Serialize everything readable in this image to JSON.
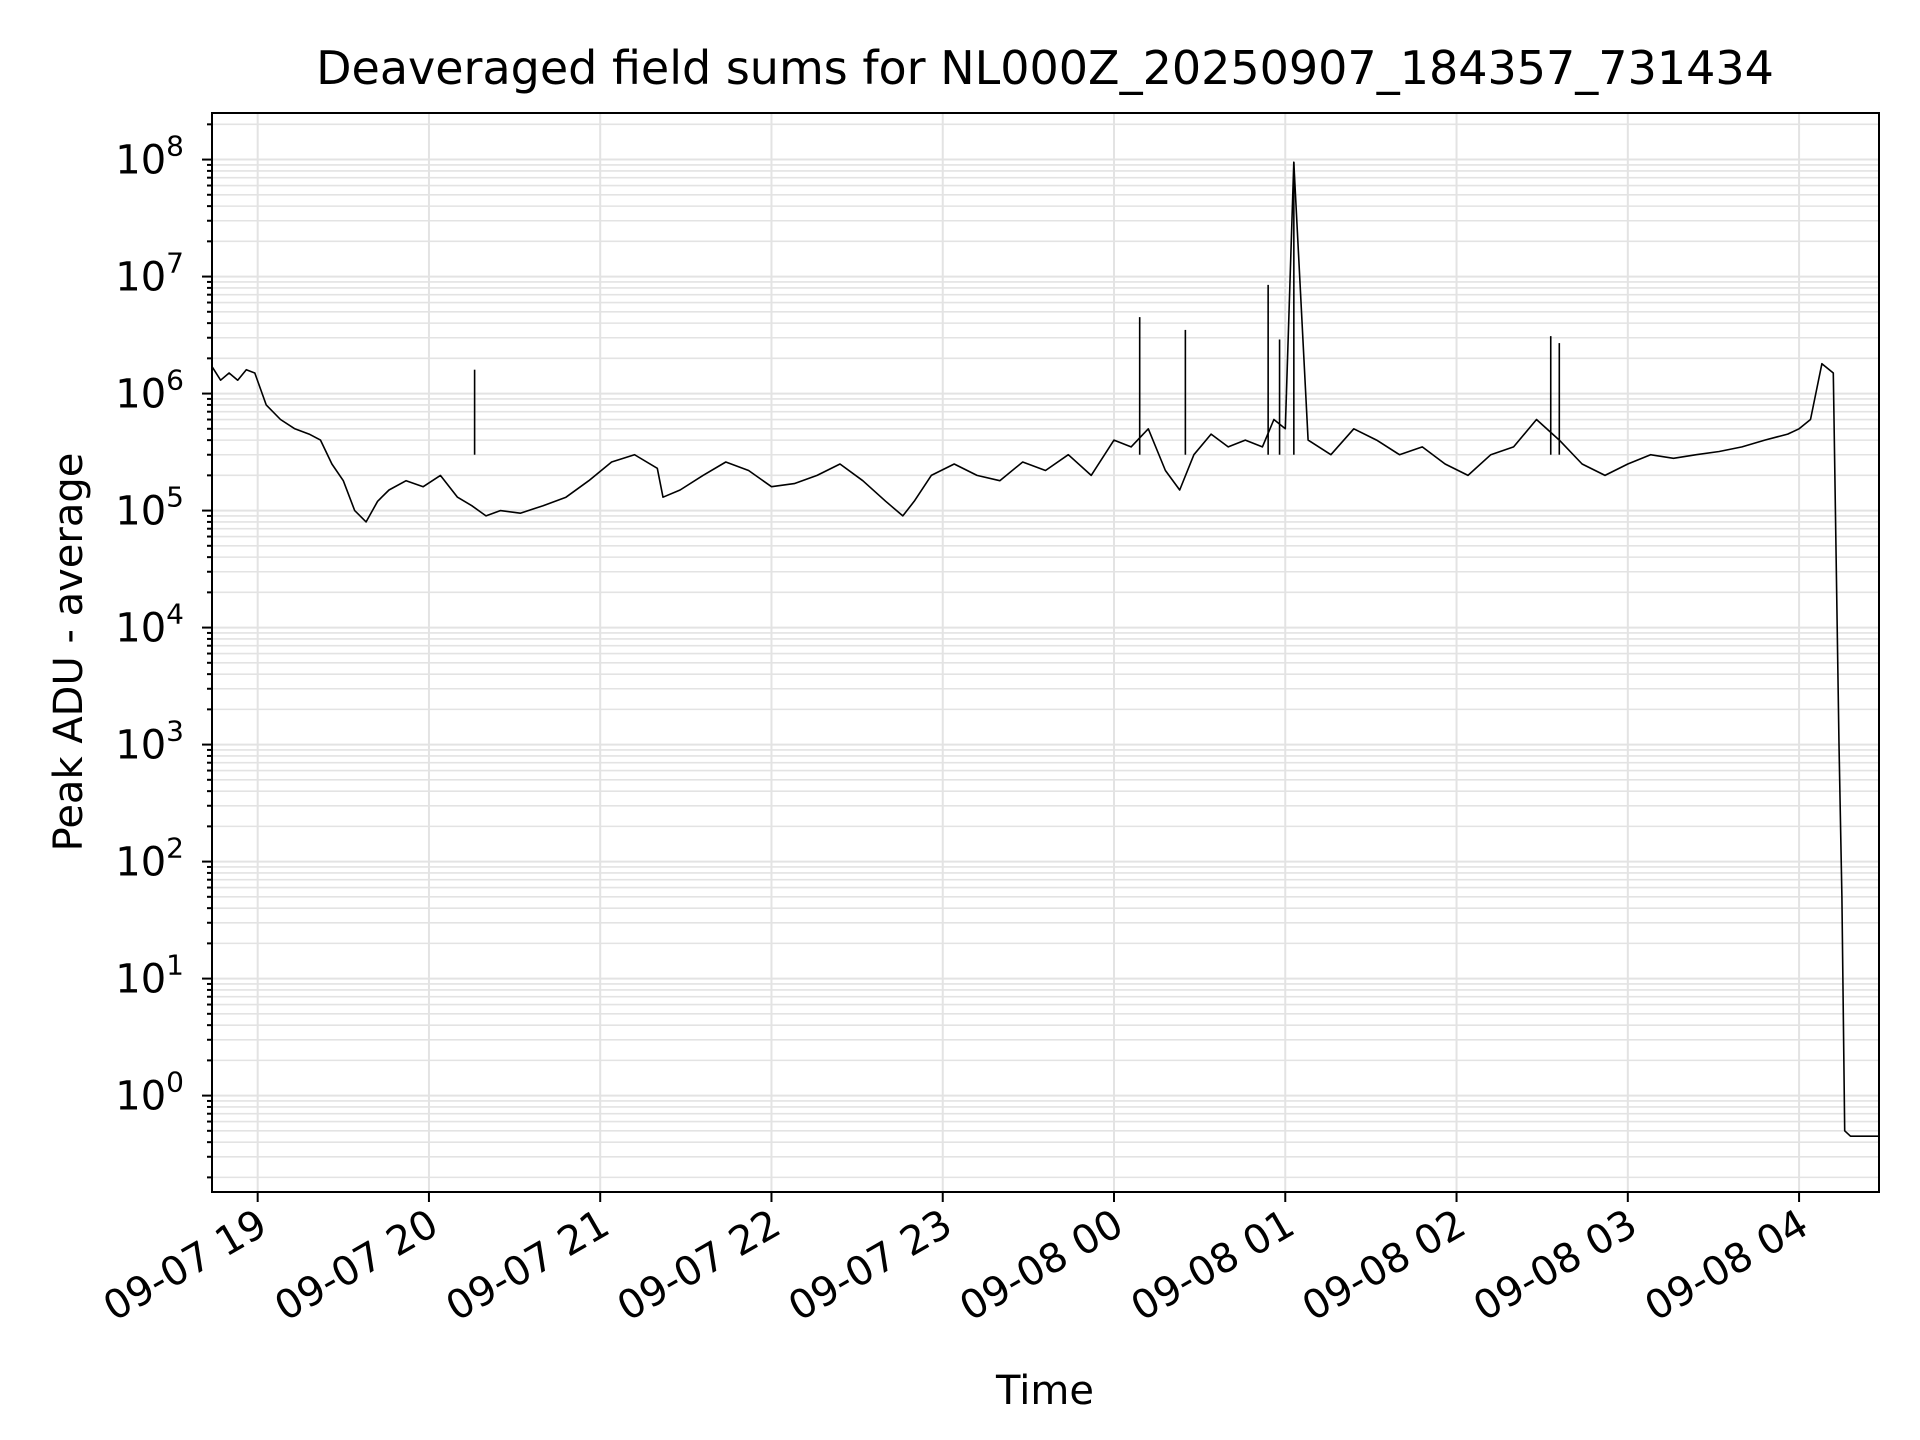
{
  "chart_data": {
    "type": "line",
    "title": "Deaveraged field sums for NL000Z_20250907_184357_731434",
    "xlabel": "Time",
    "ylabel": "Peak ADU - average",
    "yscale": "log",
    "ylim": [
      0.15,
      250000000
    ],
    "xlim": [
      "2025-09-07 18:44",
      "2025-09-08 04:28"
    ],
    "grid": true,
    "line_color": "#000000",
    "grid_color": "#e3e3e3",
    "x_ticks": [
      "09-07 19",
      "09-07 20",
      "09-07 21",
      "09-07 22",
      "09-07 23",
      "09-08 00",
      "09-08 01",
      "09-08 02",
      "09-08 03",
      "09-08 04"
    ],
    "y_ticks": [
      {
        "base": "10",
        "exp": "0"
      },
      {
        "base": "10",
        "exp": "1"
      },
      {
        "base": "10",
        "exp": "2"
      },
      {
        "base": "10",
        "exp": "3"
      },
      {
        "base": "10",
        "exp": "4"
      },
      {
        "base": "10",
        "exp": "5"
      },
      {
        "base": "10",
        "exp": "6"
      },
      {
        "base": "10",
        "exp": "7"
      },
      {
        "base": "10",
        "exp": "8"
      }
    ],
    "series": [
      {
        "x": [
          "2025-09-07 18:44",
          "2025-09-07 18:47",
          "2025-09-07 18:50",
          "2025-09-07 18:53",
          "2025-09-07 18:56",
          "2025-09-07 18:59",
          "2025-09-07 19:03",
          "2025-09-07 19:08",
          "2025-09-07 19:13",
          "2025-09-07 19:18",
          "2025-09-07 19:22",
          "2025-09-07 19:26",
          "2025-09-07 19:30",
          "2025-09-07 19:34",
          "2025-09-07 19:38",
          "2025-09-07 19:42",
          "2025-09-07 19:46",
          "2025-09-07 19:52",
          "2025-09-07 19:58",
          "2025-09-07 20:04",
          "2025-09-07 20:10",
          "2025-09-07 20:15",
          "2025-09-07 20:20",
          "2025-09-07 20:25",
          "2025-09-07 20:32",
          "2025-09-07 20:40",
          "2025-09-07 20:48",
          "2025-09-07 20:56",
          "2025-09-07 21:04",
          "2025-09-07 21:12",
          "2025-09-07 21:20",
          "2025-09-07 21:22",
          "2025-09-07 21:28",
          "2025-09-07 21:36",
          "2025-09-07 21:44",
          "2025-09-07 21:52",
          "2025-09-07 22:00",
          "2025-09-07 22:08",
          "2025-09-07 22:16",
          "2025-09-07 22:24",
          "2025-09-07 22:32",
          "2025-09-07 22:40",
          "2025-09-07 22:46",
          "2025-09-07 22:50",
          "2025-09-07 22:56",
          "2025-09-07 23:04",
          "2025-09-07 23:12",
          "2025-09-07 23:20",
          "2025-09-07 23:28",
          "2025-09-07 23:36",
          "2025-09-07 23:44",
          "2025-09-07 23:52",
          "2025-09-08 00:00",
          "2025-09-08 00:06",
          "2025-09-08 00:12",
          "2025-09-08 00:18",
          "2025-09-08 00:23",
          "2025-09-08 00:28",
          "2025-09-08 00:34",
          "2025-09-08 00:40",
          "2025-09-08 00:46",
          "2025-09-08 00:52",
          "2025-09-08 00:56",
          "2025-09-08 01:00",
          "2025-09-08 01:03",
          "2025-09-08 01:08",
          "2025-09-08 01:16",
          "2025-09-08 01:24",
          "2025-09-08 01:32",
          "2025-09-08 01:40",
          "2025-09-08 01:48",
          "2025-09-08 01:56",
          "2025-09-08 02:04",
          "2025-09-08 02:12",
          "2025-09-08 02:20",
          "2025-09-08 02:28",
          "2025-09-08 02:36",
          "2025-09-08 02:44",
          "2025-09-08 02:52",
          "2025-09-08 03:00",
          "2025-09-08 03:08",
          "2025-09-08 03:16",
          "2025-09-08 03:24",
          "2025-09-08 03:32",
          "2025-09-08 03:40",
          "2025-09-08 03:48",
          "2025-09-08 03:56",
          "2025-09-08 04:00",
          "2025-09-08 04:04",
          "2025-09-08 04:08",
          "2025-09-08 04:12",
          "2025-09-08 04:14",
          "2025-09-08 04:15",
          "2025-09-08 04:16",
          "2025-09-08 04:18",
          "2025-09-08 04:28"
        ],
        "y": [
          1700000,
          1300000,
          1500000,
          1300000,
          1600000,
          1500000,
          800000,
          600000,
          500000,
          450000,
          400000,
          250000,
          180000,
          100000,
          80000,
          120000,
          150000,
          180000,
          160000,
          200000,
          130000,
          110000,
          90000,
          100000,
          95000,
          110000,
          130000,
          180000,
          260000,
          300000,
          230000,
          130000,
          150000,
          200000,
          260000,
          220000,
          160000,
          170000,
          200000,
          250000,
          180000,
          120000,
          90000,
          120000,
          200000,
          250000,
          200000,
          180000,
          260000,
          220000,
          300000,
          200000,
          400000,
          350000,
          500000,
          220000,
          150000,
          300000,
          450000,
          350000,
          400000,
          350000,
          600000,
          500000,
          95000000,
          400000,
          300000,
          500000,
          400000,
          300000,
          350000,
          250000,
          200000,
          300000,
          350000,
          600000,
          400000,
          250000,
          200000,
          250000,
          300000,
          280000,
          300000,
          320000,
          350000,
          400000,
          450000,
          500000,
          600000,
          1800000,
          1500000,
          1000,
          50,
          0.5,
          0.45,
          0.45
        ]
      }
    ],
    "spikes": [
      {
        "x": "2025-09-07 20:16",
        "y": 1600000
      },
      {
        "x": "2025-09-08 00:09",
        "y": 4500000
      },
      {
        "x": "2025-09-08 00:25",
        "y": 3500000
      },
      {
        "x": "2025-09-08 00:54",
        "y": 8500000
      },
      {
        "x": "2025-09-08 00:58",
        "y": 2900000
      },
      {
        "x": "2025-09-08 01:03",
        "y": 95000000
      },
      {
        "x": "2025-09-08 02:33",
        "y": 3100000
      },
      {
        "x": "2025-09-08 02:36",
        "y": 2700000
      }
    ]
  }
}
